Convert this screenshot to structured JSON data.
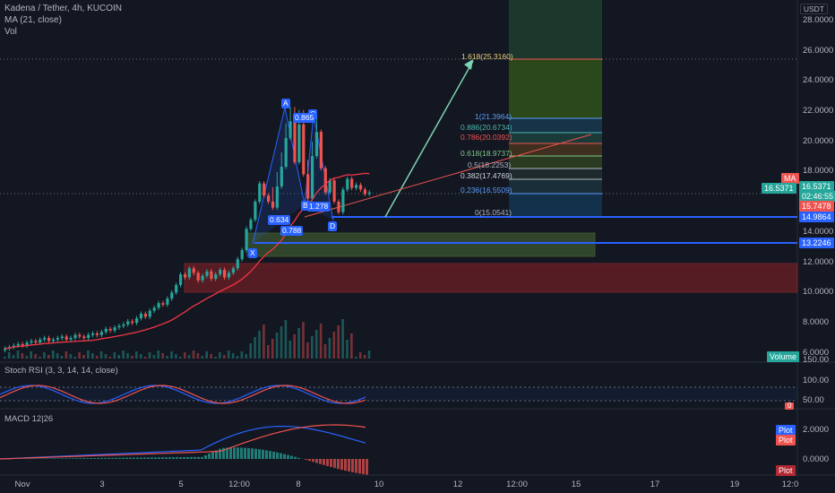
{
  "legend": {
    "symbol": "Kadena / Tether, 4h, KUCOIN",
    "ma": "MA (21, close)",
    "vol": "Vol"
  },
  "currency_button": "USDT",
  "price_axis": [
    "28.0000",
    "26.0000",
    "24.0000",
    "22.0000",
    "20.0000",
    "18.0000",
    "16.0000",
    "14.0000",
    "12.0000",
    "10.0000",
    "8.0000",
    "6.0000"
  ],
  "price_tags": {
    "ma_tag": "MA",
    "current_price": "16.5371",
    "countdown": "02:46:55",
    "ma_value": "15.7478",
    "line1": "14.9864",
    "line2": "13.2246",
    "volume": "Volume"
  },
  "fib_labels": {
    "f1618": "1.618(25.3160)",
    "f1": "1(21.3964)",
    "f0886": "0.886(20.6734)",
    "f0786": "0.786(20.0392)",
    "f0618": "0.618(18.9737)",
    "f05": "0.5(18.2253)",
    "f0382": "0.382(17.4769)",
    "f0236": "0.236(16.5509)",
    "f0": "0(15.0541)"
  },
  "pattern_points": {
    "x": "X",
    "a": "A",
    "b": "B",
    "c": "C",
    "d": "D",
    "r1": "0.634",
    "r2": "0.865",
    "r3": "1.278",
    "r4": "0.788"
  },
  "stoch": {
    "label": "Stoch RSI (3, 3, 14, 14, close)",
    "axis": [
      "150.00",
      "100.00",
      "50.00"
    ],
    "tag": "0"
  },
  "macd": {
    "label": "MACD 12|26",
    "axis": [
      "2.0000",
      "0.0000"
    ],
    "plot_blue": "Plot",
    "plot_red": "Plot",
    "plot_dark": "Plot"
  },
  "time_axis": [
    "Nov",
    "3",
    "5",
    "12:00",
    "8",
    "10",
    "12",
    "12:00",
    "15",
    "17",
    "19",
    "12:0"
  ],
  "colors": {
    "background": "#131722",
    "up": "#26a69a",
    "down": "#ef5350",
    "blue": "#2962ff",
    "ma": "#f23645"
  }
}
